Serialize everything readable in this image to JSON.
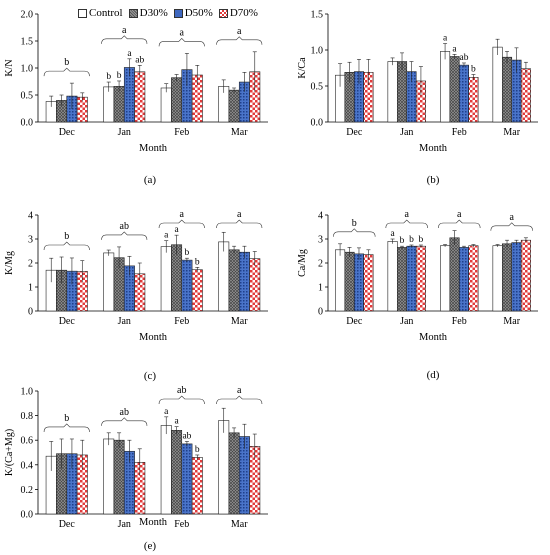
{
  "legend": [
    {
      "label": "Control",
      "pattern": "control"
    },
    {
      "label": "D30%",
      "pattern": "d30"
    },
    {
      "label": "D50%",
      "pattern": "d50"
    },
    {
      "label": "D70%",
      "pattern": "d70"
    }
  ],
  "colors": {
    "control": "#ffffff",
    "d30": "#808080",
    "d50": "#4472c4",
    "d70": "#e03030"
  },
  "chart_data": [
    {
      "type": "bar",
      "panel": "(a)",
      "ylabel": "K/N",
      "xlabel": "Month",
      "categories": [
        "Dec",
        "Jan",
        "Feb",
        "Mar"
      ],
      "ylim": [
        0,
        2.0
      ],
      "yticks": [
        "0.0",
        "0.5",
        "1.0",
        "1.5",
        "2.0"
      ],
      "series": [
        {
          "name": "Control",
          "values": [
            0.38,
            0.65,
            0.63,
            0.66
          ],
          "errors": [
            0.1,
            0.09,
            0.08,
            0.12
          ]
        },
        {
          "name": "D30%",
          "values": [
            0.4,
            0.66,
            0.82,
            0.59
          ],
          "errors": [
            0.1,
            0.1,
            0.06,
            0.04
          ]
        },
        {
          "name": "D50%",
          "values": [
            0.48,
            1.01,
            0.97,
            0.74
          ],
          "errors": [
            0.24,
            0.16,
            0.3,
            0.18
          ]
        },
        {
          "name": "D70%",
          "values": [
            0.46,
            0.93,
            0.87,
            0.93
          ],
          "errors": [
            0.08,
            0.12,
            0.18,
            0.37
          ]
        }
      ],
      "bar_letters": [
        [
          "",
          "",
          "",
          ""
        ],
        [
          "b",
          "b",
          "a",
          "ab"
        ],
        [
          "",
          "",
          "",
          ""
        ],
        [
          "",
          "",
          "",
          ""
        ]
      ],
      "group_letters": [
        "b",
        "a",
        "a",
        "a"
      ]
    },
    {
      "type": "bar",
      "panel": "(b)",
      "ylabel": "K/Ca",
      "xlabel": "Month",
      "categories": [
        "Dec",
        "Jan",
        "Feb",
        "Mar"
      ],
      "ylim": [
        0,
        1.5
      ],
      "yticks": [
        "0.0",
        "0.5",
        "1.0",
        "1.5"
      ],
      "series": [
        {
          "name": "Control",
          "values": [
            0.65,
            0.84,
            0.98,
            1.04
          ],
          "errors": [
            0.16,
            0.05,
            0.11,
            0.11
          ]
        },
        {
          "name": "D30%",
          "values": [
            0.69,
            0.84,
            0.91,
            0.9
          ],
          "errors": [
            0.14,
            0.12,
            0.03,
            0.08
          ]
        },
        {
          "name": "D50%",
          "values": [
            0.7,
            0.7,
            0.79,
            0.86
          ],
          "errors": [
            0.17,
            0.14,
            0.03,
            0.17
          ]
        },
        {
          "name": "D70%",
          "values": [
            0.69,
            0.57,
            0.62,
            0.74
          ],
          "errors": [
            0.18,
            0.2,
            0.04,
            0.09
          ]
        }
      ],
      "bar_letters": [
        [
          "",
          "",
          "",
          ""
        ],
        [
          "",
          "",
          "",
          ""
        ],
        [
          "a",
          "a",
          "ab",
          "b"
        ],
        [
          "",
          "",
          "",
          ""
        ]
      ],
      "group_letters": [
        "",
        "",
        "",
        ""
      ]
    },
    {
      "type": "bar",
      "panel": "(c)",
      "ylabel": "K/Mg",
      "xlabel": "Month",
      "categories": [
        "Dec",
        "Jan",
        "Feb",
        "Mar"
      ],
      "ylim": [
        0,
        4
      ],
      "yticks": [
        "0",
        "1",
        "2",
        "3",
        "4"
      ],
      "series": [
        {
          "name": "Control",
          "values": [
            1.7,
            2.42,
            2.68,
            2.88
          ],
          "errors": [
            0.5,
            0.12,
            0.25,
            0.4
          ]
        },
        {
          "name": "D30%",
          "values": [
            1.7,
            2.22,
            2.76,
            2.55
          ],
          "errors": [
            0.55,
            0.45,
            0.4,
            0.15
          ]
        },
        {
          "name": "D50%",
          "values": [
            1.66,
            1.88,
            2.12,
            2.45
          ],
          "errors": [
            0.55,
            0.4,
            0.08,
            0.25
          ]
        },
        {
          "name": "D70%",
          "values": [
            1.65,
            1.55,
            1.72,
            2.18
          ],
          "errors": [
            0.45,
            0.45,
            0.1,
            0.3
          ]
        }
      ],
      "bar_letters": [
        [
          "",
          "",
          "",
          ""
        ],
        [
          "",
          "",
          "",
          ""
        ],
        [
          "a",
          "a",
          "b",
          "b"
        ],
        [
          "",
          "",
          "",
          ""
        ]
      ],
      "group_letters": [
        "b",
        "ab",
        "a",
        "a"
      ]
    },
    {
      "type": "bar",
      "panel": "(d)",
      "ylabel": "Ca/Mg",
      "xlabel": "Month",
      "categories": [
        "Dec",
        "Jan",
        "Feb",
        "Mar"
      ],
      "ylim": [
        0,
        4
      ],
      "yticks": [
        "0",
        "1",
        "2",
        "3",
        "4"
      ],
      "series": [
        {
          "name": "Control",
          "values": [
            2.55,
            2.9,
            2.72,
            2.72
          ],
          "errors": [
            0.25,
            0.1,
            0.05,
            0.05
          ]
        },
        {
          "name": "D30%",
          "values": [
            2.45,
            2.65,
            3.05,
            2.8
          ],
          "errors": [
            0.2,
            0.05,
            0.3,
            0.15
          ]
        },
        {
          "name": "D50%",
          "values": [
            2.38,
            2.7,
            2.65,
            2.85
          ],
          "errors": [
            0.25,
            0.05,
            0.05,
            0.1
          ]
        },
        {
          "name": "D70%",
          "values": [
            2.35,
            2.7,
            2.72,
            2.95
          ],
          "errors": [
            0.2,
            0.05,
            0.05,
            0.1
          ]
        }
      ],
      "bar_letters": [
        [
          "",
          "",
          "",
          ""
        ],
        [
          "a",
          "b",
          "b",
          "b"
        ],
        [
          "",
          "",
          "",
          ""
        ],
        [
          "",
          "",
          "",
          ""
        ]
      ],
      "group_letters": [
        "b",
        "a",
        "a",
        "a"
      ]
    },
    {
      "type": "bar",
      "panel": "(e)",
      "ylabel": "K/(Ca+Mg)",
      "xlabel": "Month",
      "categories": [
        "Dec",
        "Jan",
        "Feb",
        "Mar"
      ],
      "ylim": [
        0,
        1.0
      ],
      "yticks": [
        "0.0",
        "0.2",
        "0.4",
        "0.6",
        "0.8",
        "1.0"
      ],
      "series": [
        {
          "name": "Control",
          "values": [
            0.47,
            0.61,
            0.72,
            0.76
          ],
          "errors": [
            0.12,
            0.05,
            0.07,
            0.1
          ]
        },
        {
          "name": "D30%",
          "values": [
            0.49,
            0.6,
            0.68,
            0.66
          ],
          "errors": [
            0.12,
            0.06,
            0.03,
            0.04
          ]
        },
        {
          "name": "D50%",
          "values": [
            0.49,
            0.51,
            0.57,
            0.63
          ],
          "errors": [
            0.12,
            0.09,
            0.02,
            0.1
          ]
        },
        {
          "name": "D70%",
          "values": [
            0.48,
            0.42,
            0.46,
            0.55
          ],
          "errors": [
            0.12,
            0.11,
            0.02,
            0.1
          ]
        }
      ],
      "bar_letters": [
        [
          "",
          "",
          "",
          ""
        ],
        [
          "",
          "",
          "",
          ""
        ],
        [
          "a",
          "a",
          "ab",
          "b"
        ],
        [
          "",
          "",
          "",
          ""
        ]
      ],
      "group_letters": [
        "b",
        "ab",
        "ab",
        "a"
      ]
    }
  ]
}
